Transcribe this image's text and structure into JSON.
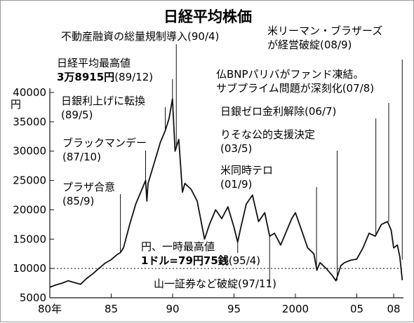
{
  "chart_data": {
    "type": "line",
    "title": "日経平均株価",
    "y_unit": "円",
    "xlim": [
      1980,
      2008.8
    ],
    "ylim": [
      5000,
      40000
    ],
    "yticks": [
      5000,
      10000,
      15000,
      20000,
      25000,
      30000,
      35000,
      40000
    ],
    "yticks_labels": [
      "5000",
      "10000",
      "15000",
      "20000",
      "25000",
      "30000",
      "35000",
      "40000"
    ],
    "xticks": [
      1980,
      1985,
      1990,
      1995,
      2000,
      2005,
      2008
    ],
    "xticks_labels": [
      "80年",
      "85",
      "90",
      "95",
      "2000",
      "05",
      "08"
    ],
    "reference_line": 10000,
    "line_color": "#111111",
    "series": [
      {
        "x": [
          1980.0,
          1980.5,
          1981.0,
          1981.5,
          1982.0,
          1982.5,
          1983.0,
          1983.5,
          1984.0,
          1984.5,
          1985.0,
          1985.5,
          1985.75,
          1986.0,
          1986.5,
          1987.0,
          1987.5,
          1987.8,
          1987.9,
          1988.0,
          1988.5,
          1989.0,
          1989.4,
          1989.7,
          1989.99,
          1990.2,
          1990.5,
          1990.8,
          1991.0,
          1991.5,
          1992.0,
          1992.6,
          1993.0,
          1993.5,
          1994.0,
          1994.5,
          1995.0,
          1995.3,
          1995.5,
          1996.0,
          1996.5,
          1997.0,
          1997.5,
          1997.9,
          1998.3,
          1998.8,
          1999.2,
          1999.7,
          2000.0,
          2000.5,
          2001.0,
          2001.5,
          2001.75,
          2002.0,
          2002.5,
          2003.0,
          2003.3,
          2003.7,
          2004.0,
          2004.5,
          2005.0,
          2005.5,
          2006.0,
          2006.5,
          2007.0,
          2007.5,
          2007.8,
          2008.0,
          2008.3,
          2008.5,
          2008.7
        ],
        "y": [
          6800,
          7200,
          7500,
          7900,
          7600,
          7300,
          8300,
          9100,
          10000,
          10900,
          11500,
          12400,
          12700,
          13500,
          17500,
          21000,
          23500,
          25000,
          21500,
          24500,
          28000,
          31500,
          33500,
          35500,
          38915,
          30000,
          32000,
          23000,
          24500,
          23500,
          21500,
          15000,
          17500,
          20000,
          18500,
          20500,
          17000,
          14500,
          16500,
          21000,
          22500,
          18000,
          19500,
          15500,
          16000,
          14000,
          16000,
          18500,
          19500,
          16500,
          13500,
          12500,
          9700,
          11000,
          10000,
          8800,
          7900,
          10500,
          11000,
          11400,
          11600,
          13500,
          16000,
          15500,
          17500,
          18000,
          16500,
          13500,
          14000,
          12000,
          8000
        ]
      }
    ],
    "annotations": [
      {
        "lines": [
          "日経平均最高値"
        ],
        "bold_line": "3万8915円",
        "bold_tail": "(89/12)",
        "x": 1989.99,
        "y": 38915
      },
      {
        "lines": [
          "不動産融資の総量規制導入(90/4)"
        ],
        "x": 1990.3,
        "y": 30500
      },
      {
        "lines": [
          "日銀利上げに転換",
          "(89/5)"
        ],
        "x": 1989.4,
        "y": 33500
      },
      {
        "lines": [
          "ブラックマンデー",
          "(87/10)"
        ],
        "x": 1987.8,
        "y": 25000
      },
      {
        "lines": [
          "プラザ合意",
          "(85/9)"
        ],
        "x": 1985.75,
        "y": 12700
      },
      {
        "lines": [
          "米リーマン・ブラザーズ",
          "が経営破綻(08/9)"
        ],
        "x": 2008.7,
        "y": 11500
      },
      {
        "lines": [
          "仏BNPパリバがファンド凍結。",
          "サブプライム問題が深刻化(07/8)"
        ],
        "x": 2007.6,
        "y": 18000
      },
      {
        "lines": [
          "日銀ゼロ金利解除(06/7)"
        ],
        "x": 2006.55,
        "y": 15600
      },
      {
        "lines": [
          "りそな公的支援決定",
          "(03/5)"
        ],
        "x": 2003.4,
        "y": 7950
      },
      {
        "lines": [
          "米同時テロ",
          "(01/9)"
        ],
        "x": 2001.72,
        "y": 9700
      },
      {
        "lines": [
          "円、一時最高値"
        ],
        "bold_line": "1ドル=79円75銭",
        "bold_tail": "(95/4)",
        "x": 1995.3,
        "y": 14500
      },
      {
        "lines": [
          "山一証券など破綻(97/11)"
        ],
        "x": 1997.9,
        "y": 15500
      }
    ]
  }
}
